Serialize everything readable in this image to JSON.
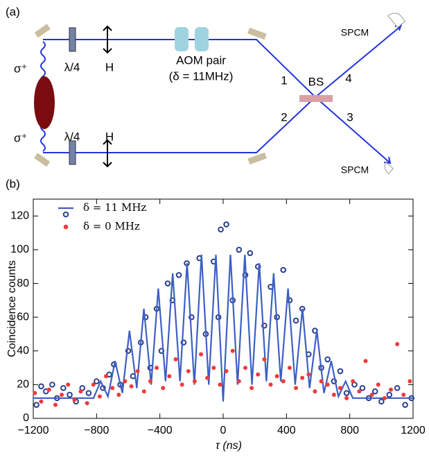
{
  "diagram": {
    "panel": "(a)",
    "sigma_top": "σ⁺",
    "sigma_bottom": "σ⁺",
    "waveplate_top": "λ/4",
    "waveplate_bottom": "λ/4",
    "h_top": "H",
    "h_bottom": "H",
    "aom": "AOM pair",
    "aom_detuning": "(δ = 11MHz)",
    "port1": "1",
    "port2": "2",
    "port3": "3",
    "port4": "4",
    "bs": "BS",
    "spcm_top": "SPCM",
    "spcm_bottom": "SPCM"
  },
  "chart_data": {
    "type": "scatter",
    "panel": "(b)",
    "xlabel": "τ (ns)",
    "ylabel": "Coincidence counts",
    "xlim": [
      -1200,
      1200
    ],
    "ylim": [
      0,
      130
    ],
    "xticks": [
      {
        "value": -1200,
        "label": "−1200"
      },
      {
        "value": -800,
        "label": "−800"
      },
      {
        "value": -400,
        "label": "−400"
      },
      0,
      400,
      800,
      1200
    ],
    "yticks": [
      0,
      20,
      40,
      60,
      80,
      100,
      120
    ],
    "grid": false,
    "legend": "upper left",
    "series": [
      {
        "name": "δ = 11 MHz",
        "color": "#2a3f8f",
        "marker": "open-circle",
        "line_color": "#3b5fc4",
        "x": [
          -1180,
          -1150,
          -1120,
          -1080,
          -1050,
          -1010,
          -970,
          -930,
          -890,
          -850,
          -800,
          -760,
          -720,
          -690,
          -650,
          -600,
          -570,
          -520,
          -490,
          -460,
          -420,
          -390,
          -350,
          -320,
          -280,
          -250,
          -230,
          -200,
          -150,
          -110,
          -60,
          -30,
          -15,
          20,
          60,
          100,
          140,
          170,
          220,
          260,
          300,
          340,
          380,
          420,
          460,
          500,
          540,
          580,
          620,
          660,
          700,
          740,
          780,
          830,
          880,
          920,
          960,
          1000,
          1050,
          1100,
          1150,
          1190
        ],
        "values": [
          8,
          19,
          16,
          20,
          12,
          18,
          14,
          10,
          18,
          15,
          22,
          18,
          26,
          32,
          20,
          40,
          25,
          45,
          60,
          30,
          65,
          40,
          80,
          70,
          85,
          45,
          92,
          60,
          95,
          50,
          93,
          60,
          112,
          115,
          70,
          100,
          85,
          98,
          90,
          55,
          78,
          60,
          88,
          70,
          58,
          65,
          38,
          52,
          30,
          35,
          22,
          28,
          15,
          20,
          18,
          12,
          16,
          10,
          14,
          18,
          8,
          12
        ],
        "fit": {
          "x": [
            -1200,
            -950,
            -819,
            -774,
            -728,
            -683,
            -637,
            -592,
            -546,
            -501,
            -455,
            -410,
            -364,
            -319,
            -273,
            -228,
            -182,
            -137,
            -91,
            -46,
            0,
            46,
            91,
            137,
            182,
            228,
            273,
            319,
            364,
            410,
            455,
            501,
            546,
            592,
            637,
            683,
            728,
            774,
            819,
            950,
            1200
          ],
          "values": [
            12,
            12,
            12,
            22,
            13,
            34,
            15,
            52,
            18,
            65,
            20,
            77,
            22,
            86,
            22,
            92,
            20,
            97,
            20,
            97,
            10,
            97,
            20,
            97,
            20,
            92,
            22,
            86,
            22,
            77,
            20,
            65,
            18,
            52,
            15,
            34,
            13,
            22,
            12,
            12,
            12
          ]
        }
      },
      {
        "name": "δ = 0 MHz",
        "color": "#f03a3a",
        "marker": "dot",
        "x": [
          -1190,
          -1150,
          -1100,
          -1060,
          -1020,
          -980,
          -940,
          -900,
          -860,
          -820,
          -780,
          -740,
          -700,
          -660,
          -620,
          -580,
          -540,
          -500,
          -460,
          -420,
          -380,
          -340,
          -300,
          -260,
          -220,
          -180,
          -140,
          -100,
          -60,
          -20,
          20,
          60,
          100,
          140,
          180,
          220,
          260,
          300,
          340,
          380,
          420,
          460,
          500,
          540,
          580,
          620,
          660,
          700,
          740,
          780,
          820,
          860,
          900,
          940,
          980,
          1020,
          1060,
          1100,
          1140,
          1180
        ],
        "values": [
          15,
          10,
          17,
          8,
          14,
          20,
          11,
          16,
          9,
          20,
          13,
          25,
          18,
          14,
          22,
          19,
          28,
          16,
          22,
          30,
          18,
          25,
          35,
          20,
          28,
          22,
          38,
          24,
          30,
          20,
          28,
          40,
          22,
          30,
          18,
          26,
          35,
          20,
          25,
          22,
          30,
          18,
          24,
          26,
          16,
          22,
          20,
          14,
          18,
          12,
          22,
          16,
          34,
          14,
          20,
          12,
          17,
          44,
          14,
          22
        ]
      }
    ]
  }
}
